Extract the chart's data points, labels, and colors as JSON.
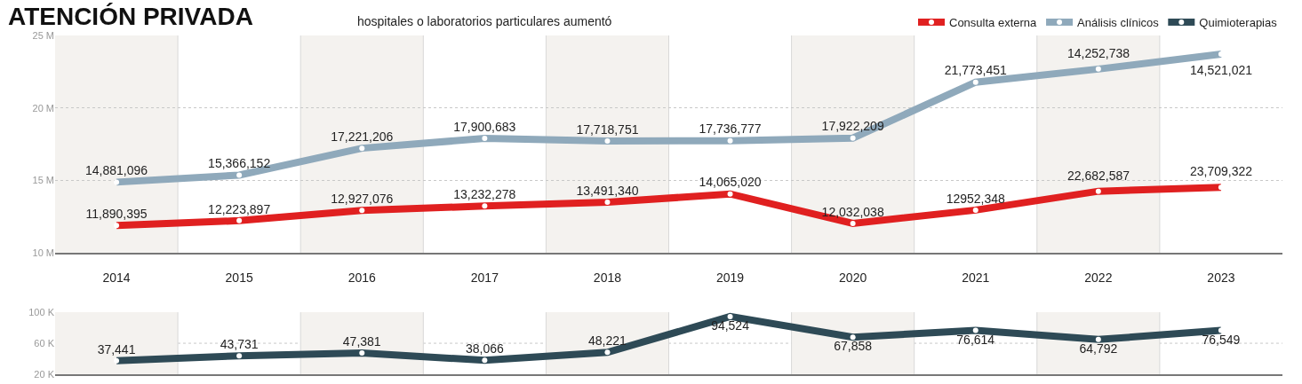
{
  "chart_data": [
    {
      "type": "line",
      "title": "ATENCIÓN PRIVADA",
      "subtitle": "hospitales o laboratorios particulares aumentó",
      "categories": [
        "2014",
        "2015",
        "2016",
        "2017",
        "2018",
        "2019",
        "2020",
        "2021",
        "2022",
        "2023"
      ],
      "series": [
        {
          "name": "Consulta externa",
          "color": "#e02020",
          "values": [
            11890395,
            12223897,
            12927076,
            13232278,
            13491340,
            14065020,
            12032038,
            12952348,
            14252738,
            14521021
          ],
          "value_labels": [
            "11,890,395",
            "12,223,897",
            "12,927,076",
            "13,232,278",
            "13,491,340",
            "14,065,020",
            "12,032,038",
            "12952,348",
            null,
            null
          ]
        },
        {
          "name": "Análisis clínicos",
          "color": "#8fa9bb",
          "values": [
            14881096,
            15366152,
            17221206,
            17900683,
            17718751,
            17736777,
            17922209,
            21773451,
            22682587,
            23709322
          ],
          "value_labels": [
            "14,881,096",
            "15,366,152",
            "17,221,206",
            "17,900,683",
            "17,718,751",
            "17,736,777",
            "17,922,209",
            "21,773,451",
            null,
            null
          ]
        }
      ],
      "annotations": [
        {
          "text": "22,682,587",
          "x": "2022",
          "y": 14252738
        },
        {
          "text": "23,709,322",
          "x": "2023",
          "y": 14521021
        },
        {
          "text": "14,252,738",
          "x": "2022",
          "y": 22682587
        },
        {
          "text": "14,521,021",
          "x": "2023",
          "y": 23709322
        }
      ],
      "ylim": [
        10000000,
        25000000
      ],
      "yticks": [
        {
          "value": 10000000,
          "label": "10 M"
        },
        {
          "value": 15000000,
          "label": "15 M"
        },
        {
          "value": 20000000,
          "label": "20 M"
        },
        {
          "value": 25000000,
          "label": "25 M"
        }
      ],
      "bands": [
        {
          "axis": "x",
          "from": "2014",
          "to": "2014",
          "color": "#f4f2ef"
        },
        {
          "axis": "x",
          "from": "2016",
          "to": "2016",
          "color": "#f4f2ef"
        },
        {
          "axis": "x",
          "from": "2018",
          "to": "2018",
          "color": "#f4f2ef"
        },
        {
          "axis": "x",
          "from": "2020",
          "to": "2020",
          "color": "#f4f2ef"
        },
        {
          "axis": "x",
          "from": "2022",
          "to": "2022",
          "color": "#f4f2ef"
        }
      ],
      "grid": "y",
      "marker": "circle",
      "line_style": "solid",
      "legend": "top right"
    },
    {
      "type": "line",
      "categories": [
        "2014",
        "2015",
        "2016",
        "2017",
        "2018",
        "2019",
        "2020",
        "2021",
        "2022",
        "2023"
      ],
      "series": [
        {
          "name": "Quimioterapias",
          "color": "#2e4a56",
          "values": [
            37441,
            43731,
            47381,
            38066,
            48221,
            94524,
            67858,
            76614,
            64792,
            76549
          ],
          "value_labels": [
            "37,441",
            "43,731",
            "47,381",
            "38,066",
            "48,221",
            "94,524",
            "67,858",
            "76,614",
            "64,792",
            "76,549"
          ]
        }
      ],
      "ylim": [
        20000,
        100000
      ],
      "yticks": [
        {
          "value": 20000,
          "label": "20 K"
        },
        {
          "value": 60000,
          "label": "60 K"
        },
        {
          "value": 100000,
          "label": "100 K"
        }
      ],
      "bands": [
        {
          "axis": "x",
          "from": "2014",
          "to": "2014",
          "color": "#f4f2ef"
        },
        {
          "axis": "x",
          "from": "2016",
          "to": "2016",
          "color": "#f4f2ef"
        },
        {
          "axis": "x",
          "from": "2018",
          "to": "2018",
          "color": "#f4f2ef"
        },
        {
          "axis": "x",
          "from": "2020",
          "to": "2020",
          "color": "#f4f2ef"
        },
        {
          "axis": "x",
          "from": "2022",
          "to": "2022",
          "color": "#f4f2ef"
        }
      ],
      "ref_lines": [
        {
          "axis": "y",
          "value": 60000,
          "color": "#c8c8c8",
          "line_style": "dotted"
        }
      ],
      "marker": "circle",
      "line_style": "solid",
      "tick_labels": "y"
    }
  ]
}
